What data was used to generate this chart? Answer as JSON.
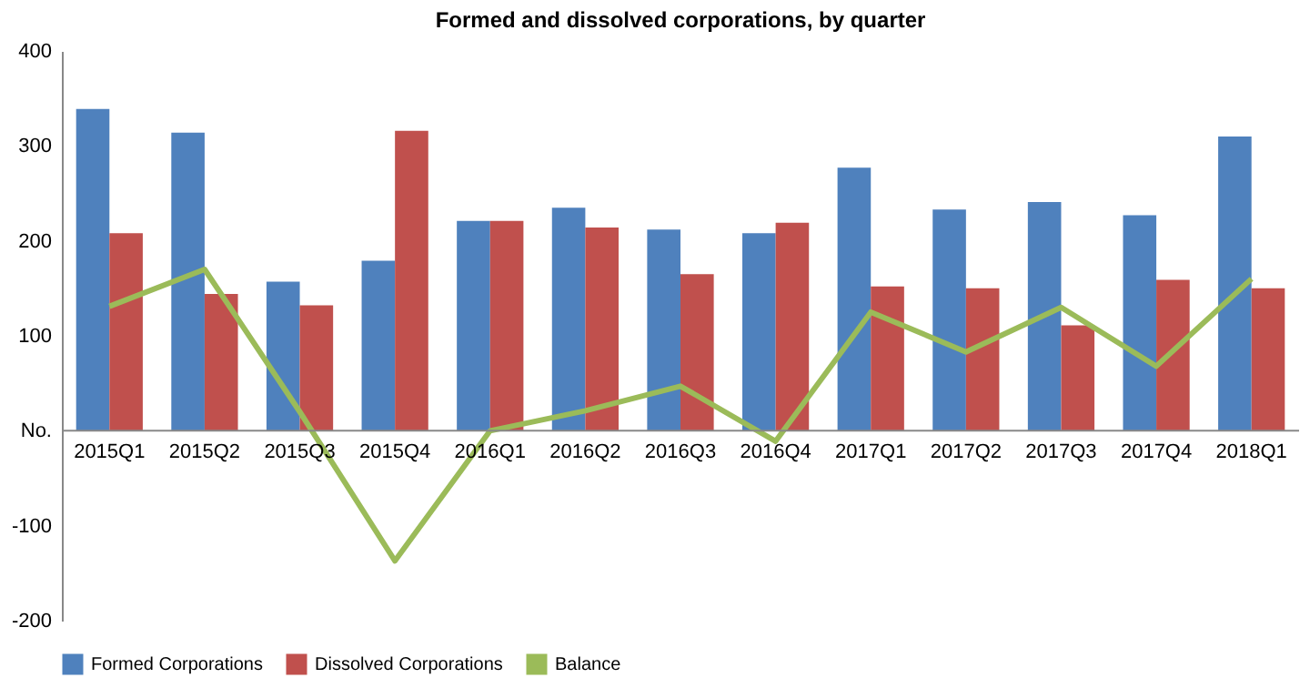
{
  "chart_data": {
    "type": "bar",
    "title": "Formed and dissolved corporations, by quarter",
    "categories": [
      "2015Q1",
      "2015Q2",
      "2015Q3",
      "2015Q4",
      "2016Q1",
      "2016Q2",
      "2016Q3",
      "2016Q4",
      "2017Q1",
      "2017Q2",
      "2017Q3",
      "2017Q4",
      "2018Q1"
    ],
    "series": [
      {
        "name": "Formed Corporations",
        "color": "#4f81bd",
        "values": [
          339,
          314,
          157,
          179,
          221,
          235,
          212,
          208,
          277,
          233,
          241,
          227,
          310
        ]
      },
      {
        "name": "Dissolved Corporations",
        "color": "#c0504d",
        "values": [
          208,
          144,
          132,
          316,
          221,
          214,
          165,
          219,
          152,
          150,
          111,
          159,
          150
        ]
      },
      {
        "name": "Balance",
        "type": "line",
        "color": "#9bbb59",
        "values": [
          131,
          170,
          20,
          -137,
          0,
          21,
          47,
          -11,
          125,
          83,
          130,
          68,
          160
        ]
      }
    ],
    "ylim": [
      -200,
      400
    ],
    "yticks": [
      -200,
      -100,
      {
        "value": 0,
        "label": "No."
      },
      100,
      200,
      300,
      400
    ],
    "grid": false,
    "legend": "bottom",
    "marker": "none",
    "line_style": "solid"
  }
}
